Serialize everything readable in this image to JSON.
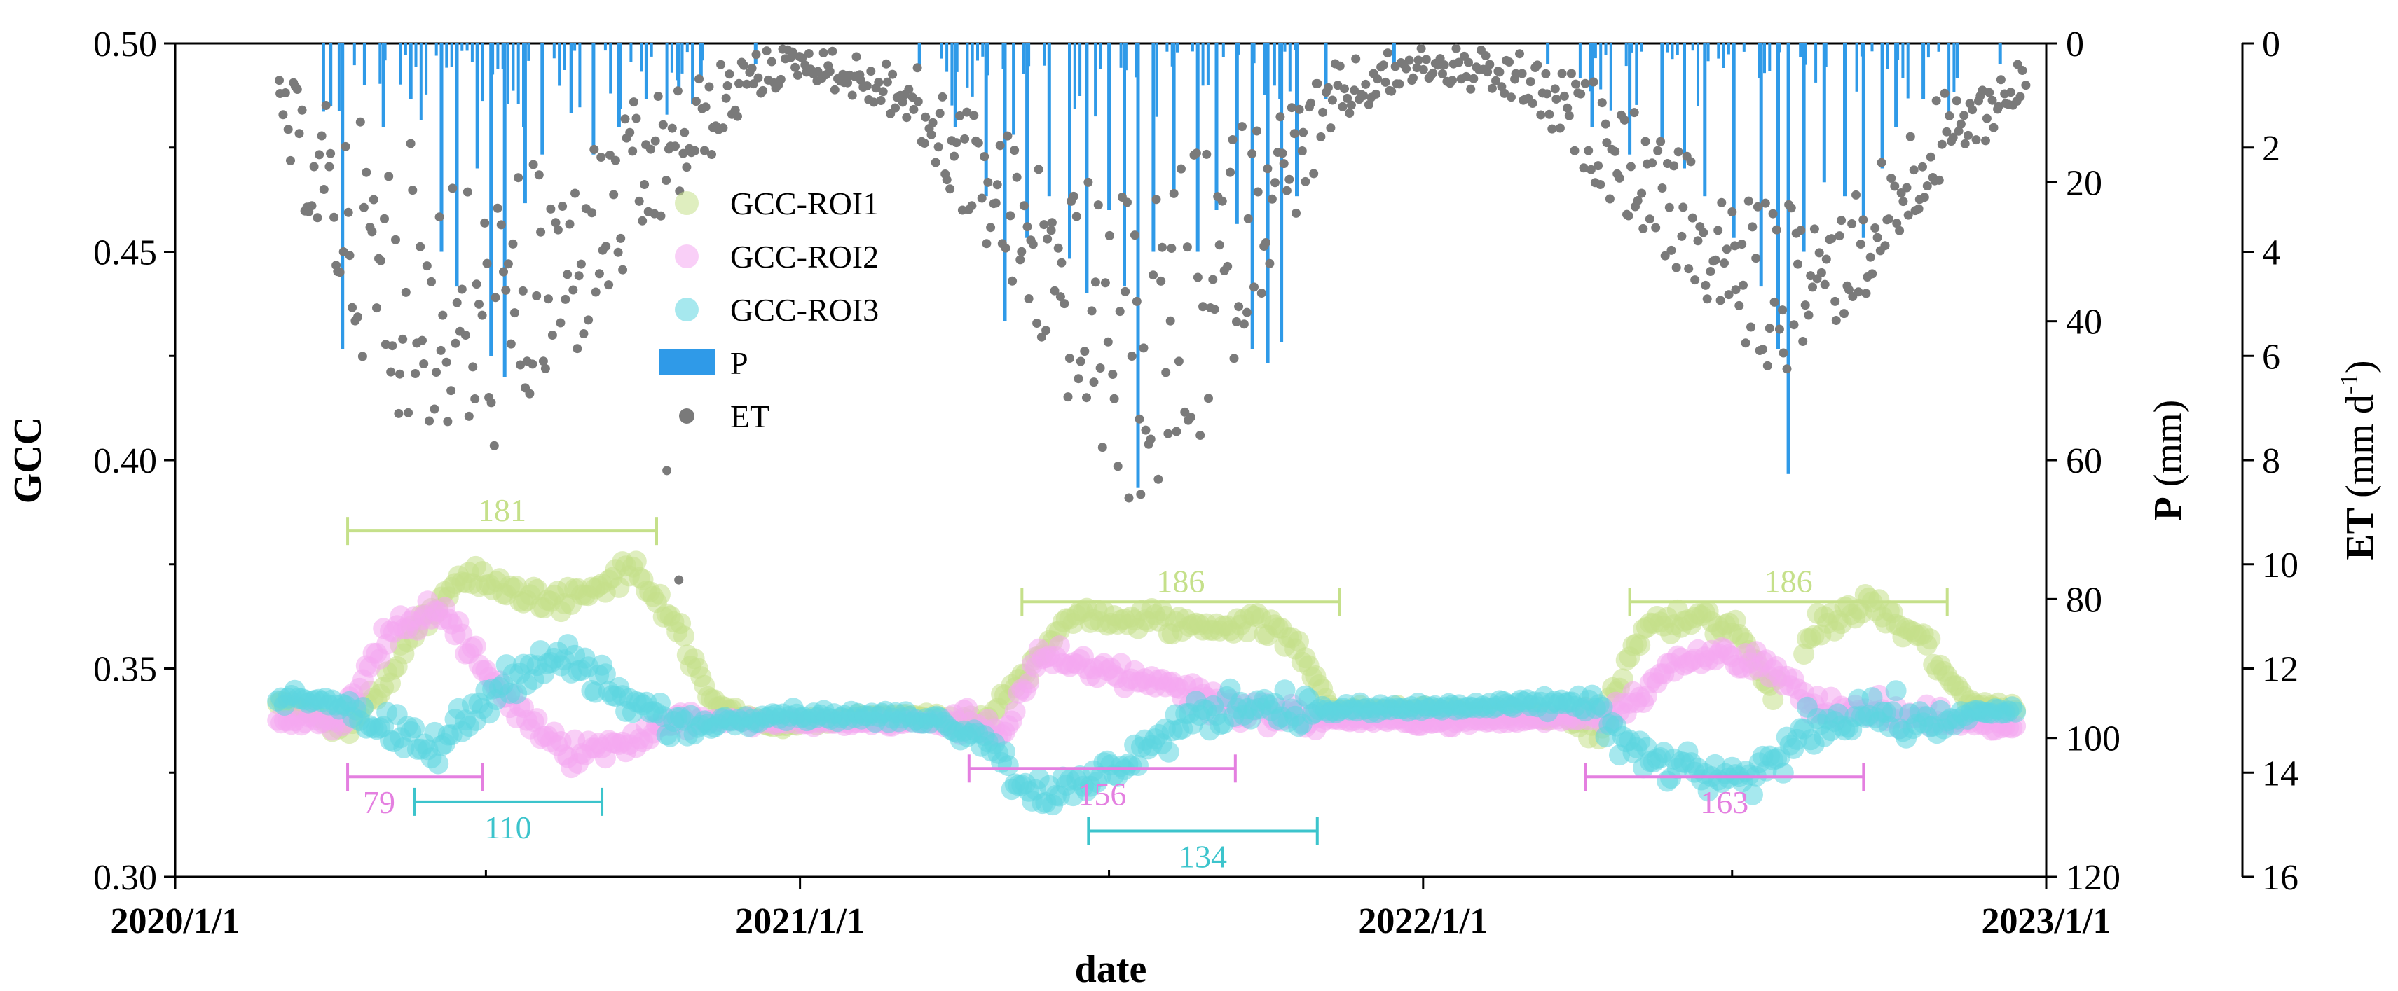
{
  "chart_data": {
    "type": "scatter",
    "title": "",
    "xlabel": "date",
    "x_ticks": [
      "2020/1/1",
      "2021/1/1",
      "2022/1/1",
      "2023/1/1"
    ],
    "xlim": [
      "2020-01-01",
      "2023-01-01"
    ],
    "axes": {
      "gcc": {
        "label": "GCC",
        "ylim": [
          0.3,
          0.5
        ],
        "ticks": [
          "0.30",
          "0.35",
          "0.40",
          "0.45",
          "0.50"
        ]
      },
      "p": {
        "label_bold": "P",
        "label_unit": " (mm)",
        "ylim": [
          0,
          120
        ],
        "inverted": true,
        "ticks": [
          "0",
          "20",
          "40",
          "60",
          "80",
          "100",
          "120"
        ]
      },
      "et": {
        "label_bold": "ET",
        "label_unit_pre": " (mm d",
        "label_unit_sup": "-1",
        "label_unit_post": ")",
        "ylim": [
          0,
          16
        ],
        "inverted": true,
        "ticks": [
          "0",
          "2",
          "4",
          "6",
          "8",
          "10",
          "12",
          "14",
          "16"
        ]
      }
    },
    "series": [
      {
        "name": "GCC-ROI1",
        "color": "#c5e08a",
        "axis": "gcc",
        "curve": [
          [
            "2020-03-01",
            0.342
          ],
          [
            "2020-04-15",
            0.336
          ],
          [
            "2020-05-20",
            0.358
          ],
          [
            "2020-06-15",
            0.372
          ],
          [
            "2020-07-20",
            0.368
          ],
          [
            "2020-08-20",
            0.366
          ],
          [
            "2020-09-25",
            0.374
          ],
          [
            "2020-10-20",
            0.36
          ],
          [
            "2020-11-10",
            0.342
          ],
          [
            "2020-12-15",
            0.336
          ],
          [
            "2021-03-01",
            0.339
          ],
          [
            "2021-04-20",
            0.336
          ],
          [
            "2021-05-10",
            0.348
          ],
          [
            "2021-06-05",
            0.362
          ],
          [
            "2021-07-15",
            0.362
          ],
          [
            "2021-08-25",
            0.36
          ],
          [
            "2021-09-25",
            0.362
          ],
          [
            "2021-10-20",
            0.355
          ],
          [
            "2021-11-10",
            0.34
          ],
          [
            "2022-01-15",
            0.34
          ],
          [
            "2022-03-10",
            0.339
          ],
          [
            "2022-04-15",
            0.336
          ],
          [
            "2022-05-10",
            0.36
          ],
          [
            "2022-06-15",
            0.362
          ],
          [
            "2022-07-05",
            0.358
          ],
          [
            "2022-07-25",
            0.345
          ],
          [
            "2022-08-20",
            0.36
          ],
          [
            "2022-09-20",
            0.366
          ],
          [
            "2022-10-20",
            0.358
          ],
          [
            "2022-11-15",
            0.342
          ],
          [
            "2022-12-15",
            0.34
          ]
        ]
      },
      {
        "name": "GCC-ROI2",
        "color": "#f4a8f0",
        "axis": "gcc",
        "curve": [
          [
            "2020-03-01",
            0.337
          ],
          [
            "2020-04-10",
            0.338
          ],
          [
            "2020-05-05",
            0.36
          ],
          [
            "2020-06-05",
            0.364
          ],
          [
            "2020-06-25",
            0.352
          ],
          [
            "2020-07-20",
            0.34
          ],
          [
            "2020-08-20",
            0.33
          ],
          [
            "2020-09-20",
            0.332
          ],
          [
            "2020-10-20",
            0.338
          ],
          [
            "2020-12-15",
            0.337
          ],
          [
            "2021-04-10",
            0.337
          ],
          [
            "2021-05-01",
            0.335
          ],
          [
            "2021-05-20",
            0.352
          ],
          [
            "2021-06-25",
            0.35
          ],
          [
            "2021-08-05",
            0.346
          ],
          [
            "2021-09-20",
            0.34
          ],
          [
            "2021-10-25",
            0.338
          ],
          [
            "2022-01-15",
            0.337
          ],
          [
            "2022-03-20",
            0.338
          ],
          [
            "2022-04-25",
            0.34
          ],
          [
            "2022-05-25",
            0.35
          ],
          [
            "2022-06-25",
            0.354
          ],
          [
            "2022-07-15",
            0.352
          ],
          [
            "2022-08-20",
            0.34
          ],
          [
            "2022-10-20",
            0.338
          ],
          [
            "2022-12-15",
            0.336
          ]
        ]
      },
      {
        "name": "GCC-ROI3",
        "color": "#5cd6e0",
        "axis": "gcc",
        "curve": [
          [
            "2020-03-01",
            0.343
          ],
          [
            "2020-04-10",
            0.342
          ],
          [
            "2020-05-05",
            0.334
          ],
          [
            "2020-06-01",
            0.33
          ],
          [
            "2020-06-25",
            0.34
          ],
          [
            "2020-07-20",
            0.35
          ],
          [
            "2020-08-20",
            0.352
          ],
          [
            "2020-09-20",
            0.342
          ],
          [
            "2020-10-25",
            0.336
          ],
          [
            "2020-12-15",
            0.339
          ],
          [
            "2021-03-20",
            0.338
          ],
          [
            "2021-04-20",
            0.334
          ],
          [
            "2021-05-10",
            0.322
          ],
          [
            "2021-06-10",
            0.32
          ],
          [
            "2021-07-10",
            0.328
          ],
          [
            "2021-08-20",
            0.338
          ],
          [
            "2021-09-20",
            0.342
          ],
          [
            "2021-10-20",
            0.34
          ],
          [
            "2021-11-10",
            0.34
          ],
          [
            "2022-02-15",
            0.341
          ],
          [
            "2022-04-10",
            0.342
          ],
          [
            "2022-05-01",
            0.33
          ],
          [
            "2022-06-01",
            0.326
          ],
          [
            "2022-07-10",
            0.322
          ],
          [
            "2022-08-15",
            0.336
          ],
          [
            "2022-09-20",
            0.34
          ],
          [
            "2022-10-20",
            0.336
          ],
          [
            "2022-11-20",
            0.339
          ],
          [
            "2022-12-15",
            0.34
          ]
        ]
      }
    ],
    "precipitation": {
      "name": "P",
      "color": "#2f9ae8",
      "axis": "p",
      "unit": "mm",
      "events": [
        [
          "2020-04-01",
          9
        ],
        [
          "2020-04-08",
          44
        ],
        [
          "2020-04-21",
          6
        ],
        [
          "2020-05-02",
          12
        ],
        [
          "2020-05-18",
          8
        ],
        [
          "2020-06-05",
          30
        ],
        [
          "2020-06-14",
          35
        ],
        [
          "2020-06-26",
          18
        ],
        [
          "2020-07-04",
          45
        ],
        [
          "2020-07-12",
          48
        ],
        [
          "2020-07-24",
          23
        ],
        [
          "2020-08-03",
          16
        ],
        [
          "2020-08-20",
          10
        ],
        [
          "2020-09-02",
          16
        ],
        [
          "2020-09-17",
          12
        ],
        [
          "2020-10-03",
          8
        ],
        [
          "2020-10-22",
          7
        ],
        [
          "2020-11-04",
          5
        ],
        [
          "2020-12-06",
          3
        ],
        [
          "2021-03-12",
          4
        ],
        [
          "2021-04-02",
          12
        ],
        [
          "2021-04-20",
          22
        ],
        [
          "2021-05-01",
          40
        ],
        [
          "2021-05-14",
          28
        ],
        [
          "2021-05-27",
          22
        ],
        [
          "2021-06-08",
          31
        ],
        [
          "2021-06-18",
          36
        ],
        [
          "2021-07-01",
          24
        ],
        [
          "2021-07-10",
          35
        ],
        [
          "2021-07-18",
          64
        ],
        [
          "2021-07-27",
          30
        ],
        [
          "2021-08-08",
          22
        ],
        [
          "2021-08-22",
          30
        ],
        [
          "2021-09-02",
          24
        ],
        [
          "2021-09-14",
          26
        ],
        [
          "2021-09-23",
          44
        ],
        [
          "2021-10-02",
          46
        ],
        [
          "2021-10-10",
          43
        ],
        [
          "2021-10-19",
          22
        ],
        [
          "2021-11-05",
          8
        ],
        [
          "2021-12-15",
          3
        ],
        [
          "2022-03-15",
          3
        ],
        [
          "2022-04-10",
          12
        ],
        [
          "2022-05-02",
          16
        ],
        [
          "2022-05-21",
          14
        ],
        [
          "2022-06-03",
          18
        ],
        [
          "2022-06-15",
          22
        ],
        [
          "2022-07-02",
          28
        ],
        [
          "2022-07-18",
          35
        ],
        [
          "2022-07-28",
          44
        ],
        [
          "2022-08-03",
          62
        ],
        [
          "2022-08-12",
          30
        ],
        [
          "2022-08-24",
          20
        ],
        [
          "2022-09-05",
          22
        ],
        [
          "2022-09-16",
          28
        ],
        [
          "2022-09-27",
          18
        ],
        [
          "2022-10-05",
          12
        ],
        [
          "2022-10-21",
          8
        ],
        [
          "2022-11-10",
          5
        ],
        [
          "2022-12-05",
          3
        ]
      ]
    },
    "evapotranspiration": {
      "name": "ET",
      "color": "#7a7a7a",
      "axis": "et",
      "unit": "mm d-1",
      "envelope": [
        [
          "2020-03-01",
          0.6,
          2.0
        ],
        [
          "2020-05-01",
          1.5,
          7.0
        ],
        [
          "2020-07-01",
          2.5,
          8.0
        ],
        [
          "2020-08-15",
          2.0,
          6.5
        ],
        [
          "2020-10-01",
          1.0,
          4.0
        ],
        [
          "2020-12-01",
          0.1,
          1.2
        ],
        [
          "2021-01-01",
          0.0,
          0.6
        ],
        [
          "2021-03-01",
          0.3,
          1.5
        ],
        [
          "2021-04-20",
          1.2,
          4.0
        ],
        [
          "2021-06-15",
          2.5,
          7.5
        ],
        [
          "2021-07-15",
          3.0,
          9.0
        ],
        [
          "2021-08-15",
          2.0,
          8.5
        ],
        [
          "2021-10-01",
          1.0,
          4.5
        ],
        [
          "2021-11-15",
          0.3,
          1.5
        ],
        [
          "2022-01-01",
          0.0,
          0.7
        ],
        [
          "2022-03-01",
          0.2,
          1.2
        ],
        [
          "2022-04-20",
          0.8,
          3.0
        ],
        [
          "2022-06-15",
          2.5,
          5.0
        ],
        [
          "2022-07-25",
          3.0,
          6.5
        ],
        [
          "2022-09-15",
          2.5,
          5.0
        ],
        [
          "2022-10-25",
          1.0,
          3.0
        ],
        [
          "2022-12-20",
          0.2,
          1.0
        ]
      ],
      "outliers": [
        [
          "2020-10-15",
          8.2
        ],
        [
          "2020-10-22",
          10.3
        ]
      ]
    },
    "legend": {
      "placement": "upper-left"
    },
    "brackets": [
      {
        "label": "181",
        "color": "#c5e08a",
        "start": "2020-04-11",
        "end": "2020-10-09",
        "gcc": 0.383
      },
      {
        "label": "79",
        "color": "#e47fe0",
        "start": "2020-04-11",
        "end": "2020-06-29",
        "gcc": 0.324
      },
      {
        "label": "110",
        "color": "#3cc4cc",
        "start": "2020-05-20",
        "end": "2020-09-07",
        "gcc": 0.318
      },
      {
        "label": "186",
        "color": "#c5e08a",
        "start": "2021-05-11",
        "end": "2021-11-13",
        "gcc": 0.366
      },
      {
        "label": "156",
        "color": "#e47fe0",
        "start": "2021-04-10",
        "end": "2021-09-13",
        "gcc": 0.326
      },
      {
        "label": "134",
        "color": "#3cc4cc",
        "start": "2021-06-19",
        "end": "2021-10-31",
        "gcc": 0.311
      },
      {
        "label": "186",
        "color": "#c5e08a",
        "start": "2022-05-02",
        "end": "2022-11-04",
        "gcc": 0.366
      },
      {
        "label": "163",
        "color": "#e47fe0",
        "start": "2022-04-06",
        "end": "2022-09-16",
        "gcc": 0.324
      }
    ]
  }
}
